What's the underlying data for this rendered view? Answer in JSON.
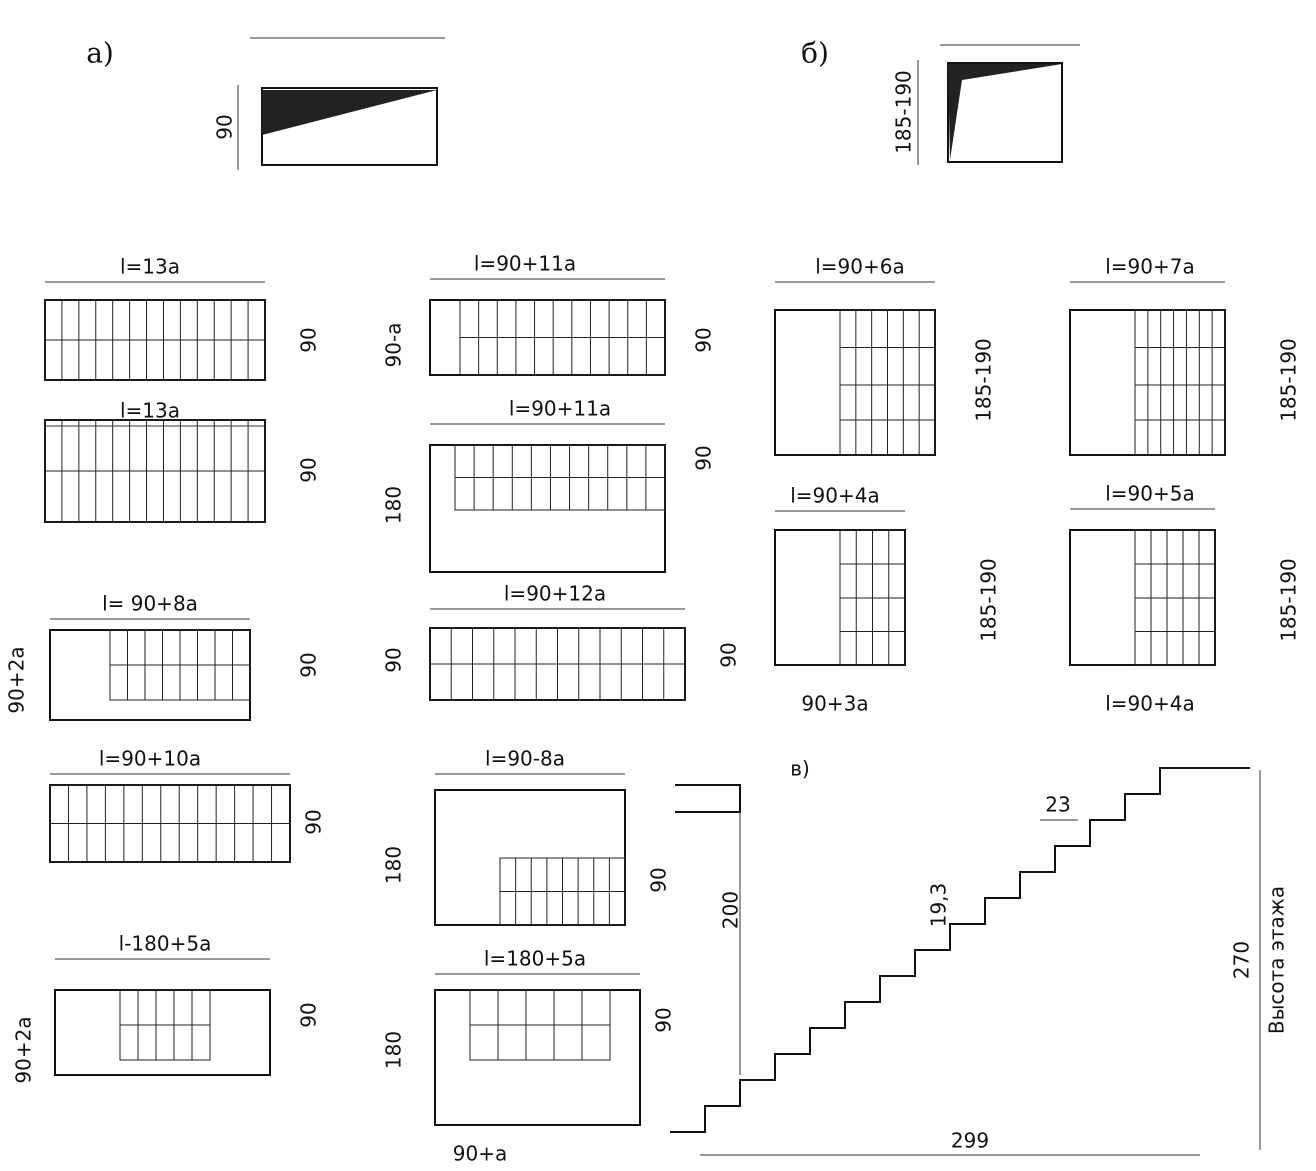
{
  "figure_a": {
    "label": "а)",
    "dim": "90"
  },
  "figure_b": {
    "label": "б)",
    "dim": "185-190"
  },
  "plans": [
    {
      "length": "l=13а",
      "dims": [
        "90"
      ]
    },
    {
      "length": "l=13а",
      "dims": [
        "90"
      ]
    },
    {
      "length": "l= 90+8а",
      "dims": [
        "90",
        "90+2а"
      ]
    },
    {
      "length": "l=90+10а",
      "dims": [
        "90"
      ]
    },
    {
      "length": "l-180+5а",
      "dims": [
        "90",
        "90+2а"
      ]
    },
    {
      "length": "l=90+11а",
      "dims": [
        "90",
        "90-а"
      ]
    },
    {
      "length": "l=90+11а",
      "dims": [
        "90",
        "180"
      ]
    },
    {
      "length": "l=90+12а",
      "dims": [
        "90",
        "90"
      ]
    },
    {
      "length": "l=90-8а",
      "dims": [
        "180",
        "90"
      ]
    },
    {
      "length": "l=180+5а",
      "dims": [
        "180",
        "90",
        "90+а"
      ]
    },
    {
      "length": "l=90+6а",
      "dims": [
        "185-190"
      ]
    },
    {
      "length": "l=90+7а",
      "dims": [
        "185-190"
      ]
    },
    {
      "length": "l=90+4а",
      "dims": [
        "185-190",
        "90+3а"
      ]
    },
    {
      "length": "l=90+5а",
      "dims": [
        "185-190",
        "l=90+4а"
      ]
    }
  ],
  "section": {
    "label": "в)",
    "clearance": "200",
    "riser": "19,3",
    "tread": "23",
    "floor_height": "270",
    "floor_height_caption": "Высота этажа",
    "run": "299"
  }
}
